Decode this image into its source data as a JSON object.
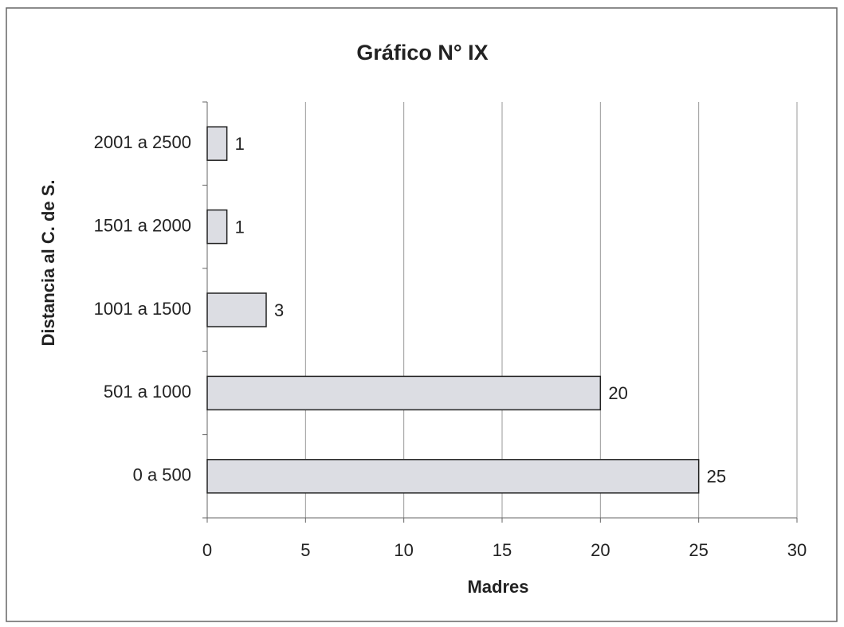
{
  "chart_data": {
    "type": "bar",
    "orientation": "horizontal",
    "title": "Gráfico N° IX",
    "x_label": "Madres",
    "y_label": "Distancia al C. de S.",
    "categories": [
      "2001 a 2500",
      "1501 a 2000",
      "1001 a 1500",
      "501 a 1000",
      "0 a 500"
    ],
    "values": [
      1,
      1,
      3,
      20,
      25
    ],
    "color": "#dcdde3",
    "xlim": [
      0,
      30
    ],
    "xticks": [
      0,
      5,
      10,
      15,
      20,
      25,
      30
    ],
    "grid": true
  }
}
